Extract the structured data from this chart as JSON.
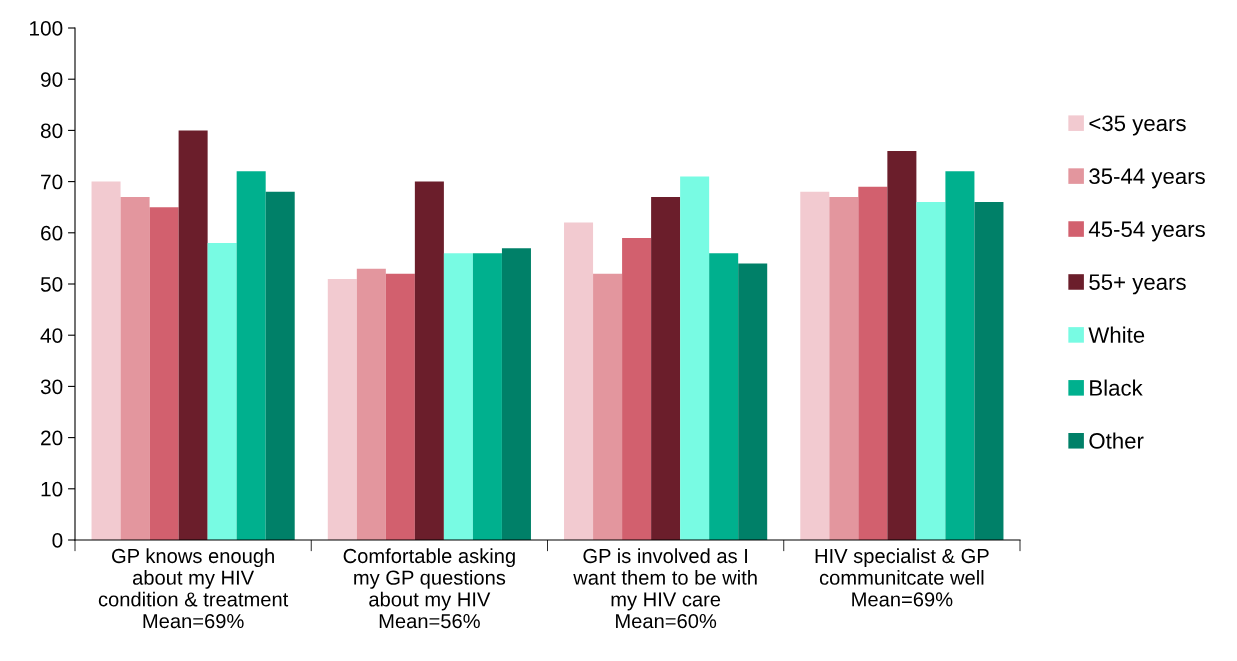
{
  "chart_data": {
    "type": "bar",
    "categories": [
      "GP knows enough\nabout my HIV\ncondition & treatment\nMean=69%",
      "Comfortable asking\nmy GP questions\nabout my HIV\nMean=56%",
      "GP is involved as I\nwant them to be with\nmy HIV care\nMean=60%",
      "HIV specialist & GP\ncommunitcate well\nMean=69%"
    ],
    "series": [
      {
        "name": "<35 years",
        "color": "#f2cad0",
        "values": [
          70,
          51,
          62,
          68
        ]
      },
      {
        "name": "35-44 years",
        "color": "#e3969e",
        "values": [
          67,
          53,
          52,
          67
        ]
      },
      {
        "name": "45-54 years",
        "color": "#d2606e",
        "values": [
          65,
          52,
          59,
          69
        ]
      },
      {
        "name": "55+ years",
        "color": "#6b1e2b",
        "values": [
          80,
          70,
          67,
          76
        ]
      },
      {
        "name": "White",
        "color": "#78fbe3",
        "values": [
          58,
          56,
          71,
          66
        ]
      },
      {
        "name": "Black",
        "color": "#00b08e",
        "values": [
          72,
          56,
          56,
          72
        ]
      },
      {
        "name": "Other",
        "color": "#008068",
        "values": [
          68,
          57,
          54,
          66
        ]
      }
    ],
    "ylim": [
      0,
      100
    ],
    "yticks": [
      0,
      10,
      20,
      30,
      40,
      50,
      60,
      70,
      80,
      90,
      100
    ],
    "grid": false,
    "legend": "right"
  }
}
